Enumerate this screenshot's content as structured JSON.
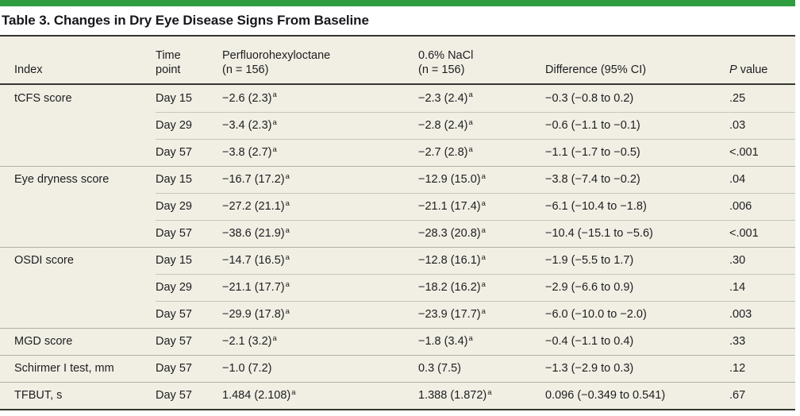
{
  "accent_color": "#2f9e41",
  "colors": {
    "row_background": "#f1efe3",
    "dark_rule": "#35352f",
    "group_separator": "#b2b0a1",
    "inner_separator": "#c7c5b6",
    "text": "#1d1d22"
  },
  "table": {
    "title": "Table 3. Changes in Dry Eye Disease Signs From Baseline",
    "columns": [
      {
        "id": "index",
        "lines": [
          "Index"
        ]
      },
      {
        "id": "time_point",
        "lines": [
          "Time",
          "point"
        ]
      },
      {
        "id": "perfluorohexyloctane",
        "lines": [
          "Perfluorohexyloctane",
          "(n = 156)"
        ]
      },
      {
        "id": "nacl",
        "lines": [
          "0.6% NaCl",
          "(n = 156)"
        ]
      },
      {
        "id": "difference",
        "lines": [
          "Difference (95% CI)"
        ]
      },
      {
        "id": "p_value",
        "italic": "P",
        "rest": " value"
      }
    ],
    "groups": [
      {
        "index": "tCFS score",
        "rows": [
          {
            "time": "Day 15",
            "pfho": {
              "value": "−2.6 (2.3)",
              "sup": "a"
            },
            "nacl": {
              "value": "−2.3 (2.4)",
              "sup": "a"
            },
            "diff": "−0.3 (−0.8 to 0.2)",
            "p": ".25"
          },
          {
            "time": "Day 29",
            "pfho": {
              "value": "−3.4 (2.3)",
              "sup": "a"
            },
            "nacl": {
              "value": "−2.8 (2.4)",
              "sup": "a"
            },
            "diff": "−0.6 (−1.1 to −0.1)",
            "p": ".03"
          },
          {
            "time": "Day 57",
            "pfho": {
              "value": "−3.8 (2.7)",
              "sup": "a"
            },
            "nacl": {
              "value": "−2.7 (2.8)",
              "sup": "a"
            },
            "diff": "−1.1 (−1.7 to −0.5)",
            "p": "<.001"
          }
        ]
      },
      {
        "index": "Eye dryness score",
        "rows": [
          {
            "time": "Day 15",
            "pfho": {
              "value": "−16.7 (17.2)",
              "sup": "a"
            },
            "nacl": {
              "value": "−12.9 (15.0)",
              "sup": "a"
            },
            "diff": "−3.8 (−7.4 to −0.2)",
            "p": ".04"
          },
          {
            "time": "Day 29",
            "pfho": {
              "value": "−27.2 (21.1)",
              "sup": "a"
            },
            "nacl": {
              "value": "−21.1 (17.4)",
              "sup": "a"
            },
            "diff": "−6.1 (−10.4 to −1.8)",
            "p": ".006"
          },
          {
            "time": "Day 57",
            "pfho": {
              "value": "−38.6 (21.9)",
              "sup": "a"
            },
            "nacl": {
              "value": "−28.3 (20.8)",
              "sup": "a"
            },
            "diff": "−10.4 (−15.1 to −5.6)",
            "p": "<.001"
          }
        ]
      },
      {
        "index": "OSDI score",
        "rows": [
          {
            "time": "Day 15",
            "pfho": {
              "value": "−14.7 (16.5)",
              "sup": "a"
            },
            "nacl": {
              "value": "−12.8 (16.1)",
              "sup": "a"
            },
            "diff": "−1.9 (−5.5 to 1.7)",
            "p": ".30"
          },
          {
            "time": "Day 29",
            "pfho": {
              "value": "−21.1 (17.7)",
              "sup": "a"
            },
            "nacl": {
              "value": "−18.2 (16.2)",
              "sup": "a"
            },
            "diff": "−2.9 (−6.6 to 0.9)",
            "p": ".14"
          },
          {
            "time": "Day 57",
            "pfho": {
              "value": "−29.9 (17.8)",
              "sup": "a"
            },
            "nacl": {
              "value": "−23.9 (17.7)",
              "sup": "a"
            },
            "diff": "−6.0 (−10.0 to −2.0)",
            "p": ".003"
          }
        ]
      },
      {
        "index": "MGD score",
        "rows": [
          {
            "time": "Day 57",
            "pfho": {
              "value": "−2.1 (3.2)",
              "sup": "a"
            },
            "nacl": {
              "value": "−1.8 (3.4)",
              "sup": "a"
            },
            "diff": "−0.4 (−1.1 to 0.4)",
            "p": ".33"
          }
        ]
      },
      {
        "index": "Schirmer I test, mm",
        "rows": [
          {
            "time": "Day 57",
            "pfho": {
              "value": "−1.0 (7.2)"
            },
            "nacl": {
              "value": "0.3 (7.5)"
            },
            "diff": "−1.3 (−2.9 to 0.3)",
            "p": ".12"
          }
        ]
      },
      {
        "index": "TFBUT, s",
        "rows": [
          {
            "time": "Day 57",
            "pfho": {
              "value": "1.484 (2.108)",
              "sup": "a"
            },
            "nacl": {
              "value": "1.388 (1.872)",
              "sup": "a"
            },
            "diff": "0.096 (−0.349 to 0.541)",
            "p": ".67"
          }
        ]
      }
    ]
  }
}
